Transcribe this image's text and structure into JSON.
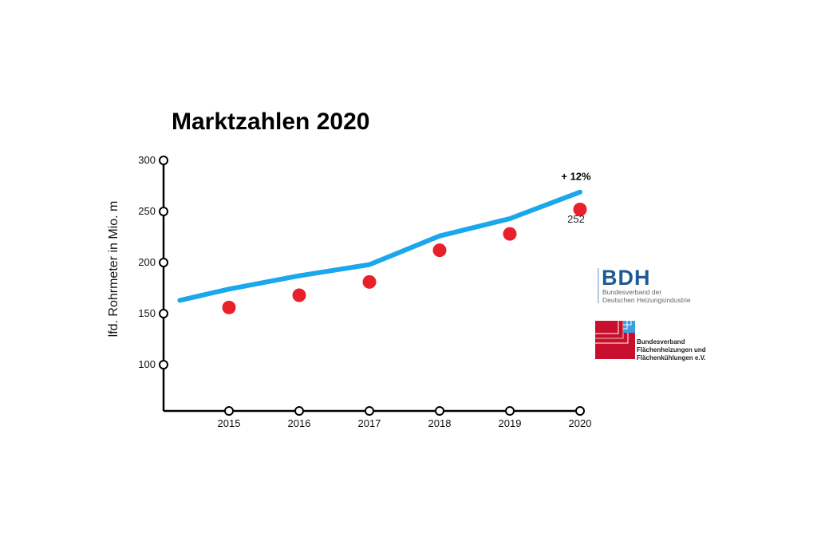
{
  "chart_data": {
    "type": "line",
    "title": "Marktzahlen 2020",
    "xlabel": "",
    "ylabel": "lfd. Rohrmeter in Mio. m",
    "x_ticks": [
      "2015",
      "2016",
      "2017",
      "2018",
      "2019",
      "2020"
    ],
    "y_ticks": [
      100,
      150,
      200,
      250,
      300
    ],
    "ylim": [
      56,
      300
    ],
    "grid": false,
    "series": [
      {
        "type": "line",
        "color": "#1aa7ec",
        "x": [
          2014.3,
          2015,
          2016,
          2017,
          2018,
          2019,
          2020
        ],
        "values": [
          163,
          174,
          187,
          198,
          226,
          243,
          269
        ]
      },
      {
        "type": "scatter",
        "color": "#e8202a",
        "x": [
          2015,
          2016,
          2017,
          2018,
          2019,
          2020
        ],
        "values": [
          156,
          168,
          181,
          212,
          228,
          252
        ]
      }
    ],
    "annotations": [
      {
        "text": "+ 12%",
        "x": 2020,
        "y": 281
      },
      {
        "text": "252",
        "x": 2020,
        "y": 239
      }
    ]
  },
  "logos": {
    "bdh": {
      "name": "BDH",
      "line1": "Bundesverband der",
      "line2": "Deutschen Heizungsindustrie",
      "color": "#1f5a94"
    },
    "bvf": {
      "line1": "Bundesverband",
      "line2": "Flächenheizungen und",
      "line3": "Flächenkühlungen e.V.",
      "color": "#c8102e"
    }
  }
}
